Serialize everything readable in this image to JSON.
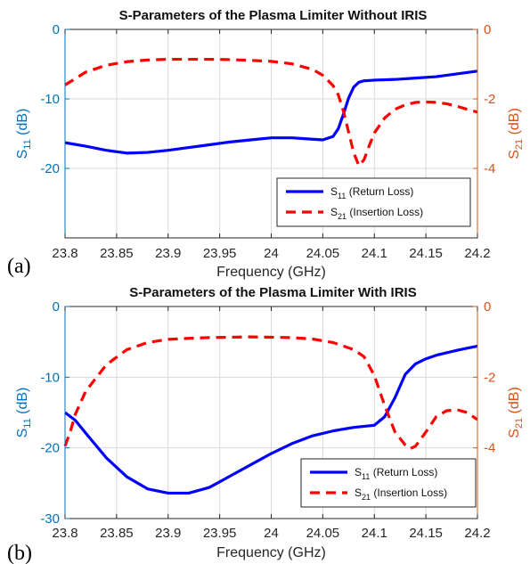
{
  "chart_data": [
    {
      "type": "line",
      "panel_label": "(a)",
      "title": "S-Parameters of the Plasma Limiter Without IRIS",
      "xlabel": "Frequency (GHz)",
      "ylabel_left": {
        "main": "S",
        "sub": "11",
        "unit": " (dB)"
      },
      "ylabel_right": {
        "main": "S",
        "sub": "21",
        "unit": " (dB)"
      },
      "xlim": [
        23.8,
        24.2
      ],
      "ylim_left": [
        -30,
        0
      ],
      "ylim_right": [
        -6,
        0
      ],
      "xticks": [
        23.8,
        23.85,
        23.9,
        23.95,
        24,
        24.05,
        24.1,
        24.15,
        24.2
      ],
      "xtick_labels": [
        "23.8",
        "23.85",
        "23.9",
        "23.95",
        "24",
        "24.05",
        "24.1",
        "24.15",
        "24.2"
      ],
      "yticks_left": [
        0,
        -10,
        -20
      ],
      "ytick_labels_left": [
        "0",
        "-10",
        "-20"
      ],
      "yticks_right": [
        0,
        -2,
        -4
      ],
      "ytick_labels_right": [
        "0",
        "-2",
        "-4"
      ],
      "grid": true,
      "legend_position": "bottom-right",
      "series": [
        {
          "name": "S11 (Return Loss)",
          "legend": {
            "main": "S",
            "sub": "11",
            "rest": " (Return Loss)"
          },
          "axis": "left",
          "color": "#0000FF",
          "style": "solid",
          "x": [
            23.8,
            23.82,
            23.84,
            23.86,
            23.88,
            23.9,
            23.92,
            23.94,
            23.96,
            23.98,
            24.0,
            24.02,
            24.04,
            24.05,
            24.06,
            24.065,
            24.07,
            24.075,
            24.08,
            24.085,
            24.09,
            24.1,
            24.12,
            24.14,
            24.16,
            24.18,
            24.2
          ],
          "y": [
            -16.3,
            -16.8,
            -17.4,
            -17.8,
            -17.7,
            -17.4,
            -17.0,
            -16.6,
            -16.2,
            -15.9,
            -15.6,
            -15.6,
            -15.8,
            -15.9,
            -15.4,
            -14.3,
            -12.2,
            -9.9,
            -8.3,
            -7.6,
            -7.4,
            -7.3,
            -7.2,
            -7.0,
            -6.8,
            -6.4,
            -6.0
          ]
        },
        {
          "name": "S21 (Insertion Loss)",
          "legend": {
            "main": "S",
            "sub": "21",
            "rest": " (Insertion Loss)"
          },
          "axis": "right",
          "color": "#FF0000",
          "style": "dashed",
          "x": [
            23.8,
            23.82,
            23.84,
            23.86,
            23.88,
            23.9,
            23.92,
            23.94,
            23.96,
            23.98,
            24.0,
            24.02,
            24.04,
            24.05,
            24.06,
            24.065,
            24.07,
            24.075,
            24.08,
            24.085,
            24.09,
            24.095,
            24.1,
            24.11,
            24.12,
            24.13,
            24.14,
            24.15,
            24.16,
            24.17,
            24.18,
            24.19,
            24.2
          ],
          "y": [
            -1.6,
            -1.23,
            -1.03,
            -0.93,
            -0.88,
            -0.86,
            -0.86,
            -0.86,
            -0.87,
            -0.89,
            -0.92,
            -0.99,
            -1.15,
            -1.32,
            -1.62,
            -1.88,
            -2.35,
            -2.95,
            -3.55,
            -3.92,
            -3.75,
            -3.35,
            -2.98,
            -2.55,
            -2.3,
            -2.17,
            -2.1,
            -2.09,
            -2.1,
            -2.14,
            -2.21,
            -2.3,
            -2.38
          ]
        }
      ]
    },
    {
      "type": "line",
      "panel_label": "(b)",
      "title": "S-Parameters of the Plasma Limiter With IRIS",
      "xlabel": "Frequency (GHz)",
      "ylabel_left": {
        "main": "S",
        "sub": "11",
        "unit": " (dB)"
      },
      "ylabel_right": {
        "main": "S",
        "sub": "21",
        "unit": " (dB)"
      },
      "xlim": [
        23.8,
        24.2
      ],
      "ylim_left": [
        -30,
        0
      ],
      "ylim_right": [
        -6,
        0
      ],
      "xticks": [
        23.8,
        23.85,
        23.9,
        23.95,
        24,
        24.05,
        24.1,
        24.15,
        24.2
      ],
      "xtick_labels": [
        "23.8",
        "23.85",
        "23.9",
        "23.95",
        "24",
        "24.05",
        "24.1",
        "24.15",
        "24.2"
      ],
      "yticks_left": [
        0,
        -10,
        -20,
        -30
      ],
      "ytick_labels_left": [
        "0",
        "-10",
        "-20",
        "-30"
      ],
      "yticks_right": [
        0,
        -2,
        -4
      ],
      "ytick_labels_right": [
        "0",
        "-2",
        "-4"
      ],
      "grid": true,
      "legend_position": "bottom-right",
      "series": [
        {
          "name": "S11 (Return Loss)",
          "legend": {
            "main": "S",
            "sub": "11",
            "rest": " (Return Loss)"
          },
          "axis": "left",
          "color": "#0000FF",
          "style": "solid",
          "x": [
            23.8,
            23.81,
            23.82,
            23.84,
            23.86,
            23.88,
            23.9,
            23.92,
            23.94,
            23.96,
            23.98,
            24.0,
            24.02,
            24.04,
            24.06,
            24.08,
            24.1,
            24.11,
            24.12,
            24.13,
            24.14,
            24.15,
            24.16,
            24.18,
            24.2
          ],
          "y": [
            -15.0,
            -16.1,
            -17.9,
            -21.4,
            -24.1,
            -25.8,
            -26.4,
            -26.4,
            -25.6,
            -24.0,
            -22.4,
            -20.8,
            -19.4,
            -18.3,
            -17.6,
            -17.1,
            -16.8,
            -15.6,
            -12.9,
            -9.6,
            -8.1,
            -7.4,
            -6.9,
            -6.2,
            -5.6
          ]
        },
        {
          "name": "S21 (Insertion Loss)",
          "legend": {
            "main": "S",
            "sub": "21",
            "rest": " (Insertion Loss)"
          },
          "axis": "right",
          "color": "#FF0000",
          "style": "dashed",
          "x": [
            23.8,
            23.805,
            23.81,
            23.82,
            23.84,
            23.86,
            23.88,
            23.9,
            23.92,
            23.94,
            23.96,
            23.98,
            24.0,
            24.02,
            24.04,
            24.06,
            24.08,
            24.09,
            24.1,
            24.11,
            24.12,
            24.13,
            24.135,
            24.14,
            24.15,
            24.16,
            24.17,
            24.18,
            24.19,
            24.2
          ],
          "y": [
            -3.95,
            -3.55,
            -3.05,
            -2.4,
            -1.65,
            -1.22,
            -1.02,
            -0.93,
            -0.9,
            -0.88,
            -0.87,
            -0.86,
            -0.87,
            -0.88,
            -0.92,
            -1.02,
            -1.22,
            -1.42,
            -1.95,
            -2.8,
            -3.55,
            -3.92,
            -4.02,
            -3.95,
            -3.55,
            -3.12,
            -2.95,
            -2.92,
            -3.0,
            -3.2
          ]
        }
      ]
    }
  ]
}
